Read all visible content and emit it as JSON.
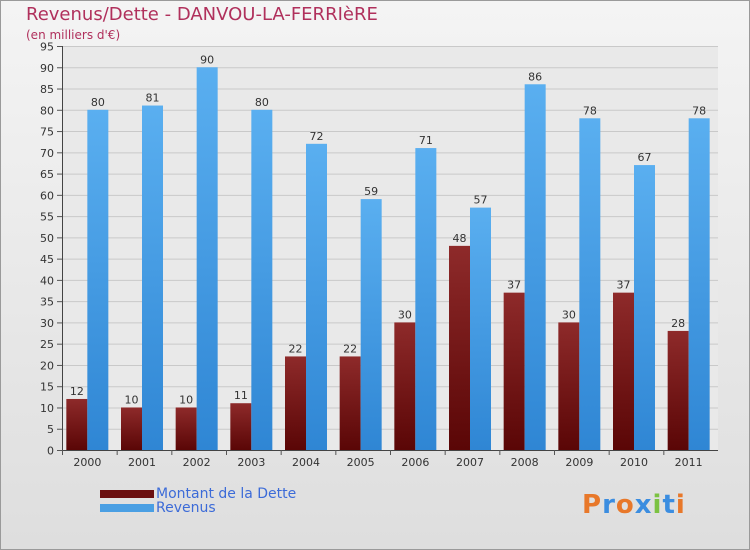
{
  "title": "Revenus/Dette - DANVOU-LA-FERRIèRE",
  "subtitle": "(en milliers d'€)",
  "chart_data": {
    "type": "bar",
    "title": "Revenus/Dette - DANVOU-LA-FERRIèRE",
    "ylabel": "(en milliers d'€)",
    "xlabel": "",
    "categories": [
      "2000",
      "2001",
      "2002",
      "2003",
      "2004",
      "2005",
      "2006",
      "2007",
      "2008",
      "2009",
      "2010",
      "2011"
    ],
    "series": [
      {
        "name": "Montant de la Dette",
        "values": [
          12,
          10,
          10,
          11,
          22,
          22,
          30,
          48,
          37,
          30,
          37,
          28
        ],
        "color": "#7a1a1a"
      },
      {
        "name": "Revenus",
        "values": [
          80,
          81,
          90,
          80,
          72,
          59,
          71,
          57,
          86,
          78,
          67,
          78
        ],
        "color": "#4a9fe3"
      }
    ],
    "ylim": [
      0,
      95
    ],
    "yticks": [
      0,
      5,
      10,
      15,
      20,
      25,
      30,
      35,
      40,
      45,
      50,
      55,
      60,
      65,
      70,
      75,
      80,
      85,
      90,
      95
    ],
    "grid": true,
    "legend": "bottom-left"
  },
  "legend": [
    {
      "label": "Montant de la Dette",
      "color": "#6a0e0e"
    },
    {
      "label": "Revenus",
      "color": "#4a9fe3"
    }
  ],
  "brand": {
    "text": "Proxiti",
    "colors": [
      "#e8782a",
      "#3b8de0",
      "#e8782a",
      "#3b8de0",
      "#7cc242",
      "#3b8de0",
      "#e8782a"
    ]
  }
}
